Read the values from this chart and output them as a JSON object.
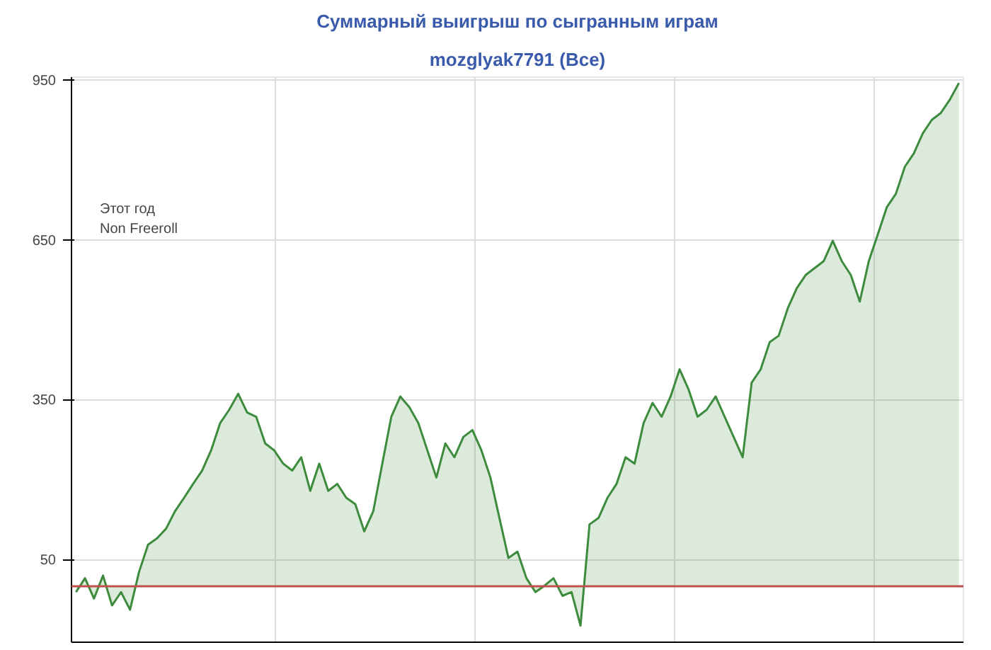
{
  "chart_data": {
    "type": "area",
    "title": "Суммарный выигрыш по сыгранным играм",
    "subtitle": "mozglyak7791 (Все)",
    "annotations": [
      "Этот год",
      "Non Freeroll"
    ],
    "categories": [
      null,
      null,
      null,
      null,
      null,
      null,
      null,
      null,
      null,
      null,
      null,
      null,
      null,
      null,
      null,
      null,
      null,
      null,
      null,
      null,
      null,
      null,
      null,
      null,
      null,
      null,
      null,
      null,
      null,
      null,
      null,
      null,
      null,
      null,
      null,
      null,
      null,
      null,
      null,
      null,
      null,
      null,
      null,
      null,
      null,
      null,
      null,
      null,
      null,
      null,
      null,
      null,
      null,
      null,
      null,
      null,
      null,
      null,
      null,
      null,
      null,
      null,
      null,
      null,
      null,
      null,
      null,
      null,
      null,
      null,
      null,
      null,
      null,
      null,
      null,
      null,
      null,
      null,
      null,
      null,
      null,
      null,
      null,
      null,
      null,
      null,
      null,
      null,
      null,
      null,
      null,
      null,
      null,
      null,
      null,
      null,
      null,
      null,
      null
    ],
    "series": [
      {
        "color": "#3d8b3d",
        "values": [
          -11,
          15,
          -23,
          20,
          -36,
          -11,
          -44,
          27,
          78,
          90,
          108,
          141,
          166,
          192,
          217,
          255,
          306,
          331,
          361,
          326,
          318,
          268,
          255,
          230,
          217,
          242,
          179,
          230,
          179,
          192,
          166,
          154,
          103,
          141,
          230,
          318,
          356,
          336,
          306,
          255,
          204,
          268,
          242,
          280,
          293,
          255,
          204,
          128,
          53,
          65,
          15,
          -11,
          1,
          15,
          -18,
          -11,
          -74,
          116,
          128,
          166,
          192,
          242,
          230,
          306,
          344,
          318,
          356,
          407,
          369,
          318,
          331,
          356,
          318,
          280,
          242,
          382,
          407,
          458,
          470,
          521,
          559,
          584,
          597,
          610,
          648,
          610,
          584,
          534,
          610,
          660,
          711,
          736,
          787,
          812,
          850,
          875,
          888,
          913,
          944
        ]
      }
    ],
    "ylim": [
      -105,
      955
    ],
    "yticks": [
      50,
      350,
      650,
      950
    ],
    "tick_labels": "y",
    "grid": true,
    "ref_lines": [
      {
        "axis": "y",
        "value": 0,
        "color": "#c0504d"
      }
    ]
  }
}
